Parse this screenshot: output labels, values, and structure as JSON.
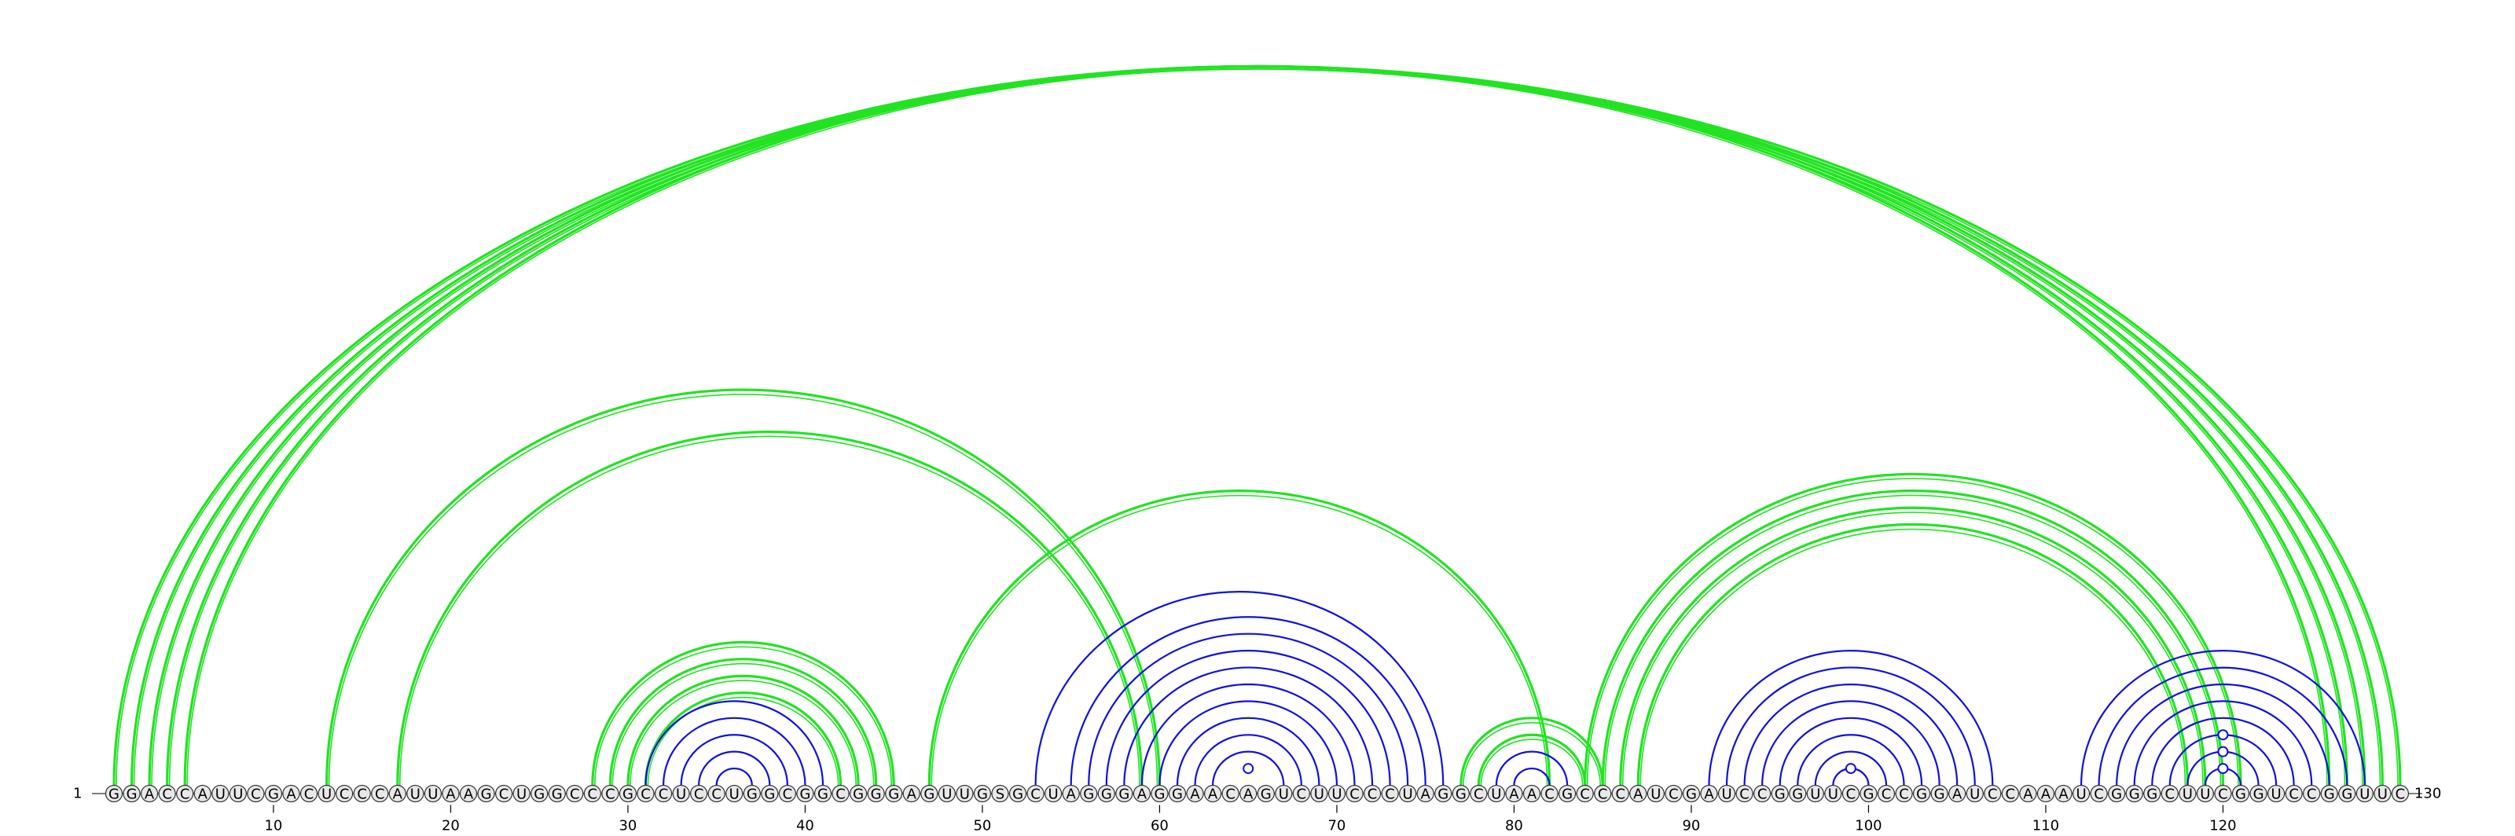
{
  "sequence": "GGACCAUUCGACUCCCAUUAAGCUGGCCCGCCUCCUGGCGGCGGGAGUUGSGCUAGGGAGGAACAGUCUUCCCUAGGCUAACGCCCAUCGAUCCGGUUCGCCGGAUCCAAAUCGGGCUUCGGUCCGGUUC",
  "start_label": "1",
  "end_label": "130",
  "tick_labels": [
    "10",
    "20",
    "30",
    "40",
    "50",
    "60",
    "70",
    "80",
    "90",
    "100",
    "110",
    "120"
  ],
  "tick_positions": [
    10,
    20,
    30,
    40,
    50,
    60,
    70,
    80,
    90,
    100,
    110,
    120
  ],
  "colors": {
    "green_arc": "#22e322",
    "blue_arc": "#1010e0",
    "backbone": "#555555",
    "nuc_fill": "#e8e8e8",
    "nuc_stroke": "#333333"
  },
  "green_pairs": [
    [
      1,
      130
    ],
    [
      2,
      129
    ],
    [
      3,
      128
    ],
    [
      4,
      127
    ],
    [
      5,
      126
    ],
    [
      13,
      60
    ],
    [
      17,
      59
    ],
    [
      28,
      45
    ],
    [
      29,
      44
    ],
    [
      30,
      43
    ],
    [
      31,
      42
    ],
    [
      47,
      82
    ],
    [
      77,
      85
    ],
    [
      78,
      84
    ],
    [
      84,
      121
    ],
    [
      85,
      120
    ],
    [
      86,
      119
    ],
    [
      87,
      118
    ]
  ],
  "blue_pairs": [
    [
      31,
      41
    ],
    [
      32,
      40
    ],
    [
      33,
      39
    ],
    [
      34,
      38
    ],
    [
      35,
      37
    ],
    [
      53,
      76
    ],
    [
      55,
      75
    ],
    [
      56,
      74
    ],
    [
      57,
      73
    ],
    [
      58,
      72
    ],
    [
      59,
      71
    ],
    [
      60,
      70
    ],
    [
      61,
      69
    ],
    [
      62,
      68
    ],
    [
      63,
      67
    ],
    [
      79,
      83
    ],
    [
      80,
      82
    ],
    [
      91,
      107
    ],
    [
      92,
      106
    ],
    [
      93,
      105
    ],
    [
      94,
      104
    ],
    [
      95,
      103
    ],
    [
      96,
      102
    ],
    [
      97,
      101
    ],
    [
      98,
      100
    ],
    [
      112,
      128
    ],
    [
      113,
      127
    ],
    [
      114,
      126
    ],
    [
      115,
      125
    ],
    [
      116,
      124
    ],
    [
      117,
      123
    ],
    [
      118,
      122
    ],
    [
      119,
      121
    ]
  ],
  "open_circles_blue": [
    65,
    98,
    119
  ],
  "blue_labeled_hairpins": [
    [
      64,
      66
    ],
    [
      118,
      120
    ],
    [
      119,
      121
    ]
  ]
}
